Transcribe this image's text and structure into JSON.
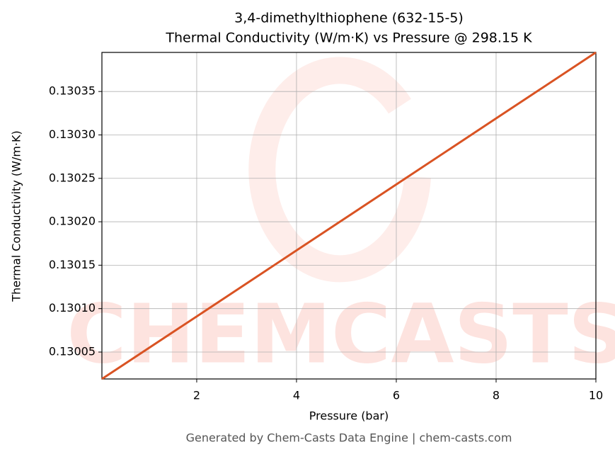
{
  "chart_data": {
    "type": "line",
    "title": "3,4-dimethylthiophene (632-15-5)",
    "subtitle": "Thermal Conductivity (W/m·K) vs Pressure @ 298.15 K",
    "x_label": "Pressure (bar)",
    "y_label": "Thermal Conductivity (W/m·K)",
    "footer": "Generated by Chem-Casts Data Engine | chem-casts.com",
    "watermark": "CHEMCASTS",
    "x": [
      0.1,
      2,
      4,
      6,
      8,
      10
    ],
    "series": [
      {
        "name": "Thermal Conductivity",
        "color": "#d95323",
        "values": [
          0.130019,
          0.130091,
          0.130167,
          0.130243,
          0.130319,
          0.130395
        ]
      }
    ],
    "xlim": [
      0.1,
      10
    ],
    "xticks": [
      2,
      4,
      6,
      8,
      10
    ],
    "ylim": [
      0.130019,
      0.130395
    ],
    "yticks": [
      0.13005,
      {
        "value": 0.1301,
        "label": "0.13010"
      },
      0.13015,
      {
        "value": 0.1302,
        "label": "0.13020"
      },
      0.13025,
      {
        "value": 0.1303,
        "label": "0.13030"
      },
      0.13035
    ],
    "grid": true
  }
}
